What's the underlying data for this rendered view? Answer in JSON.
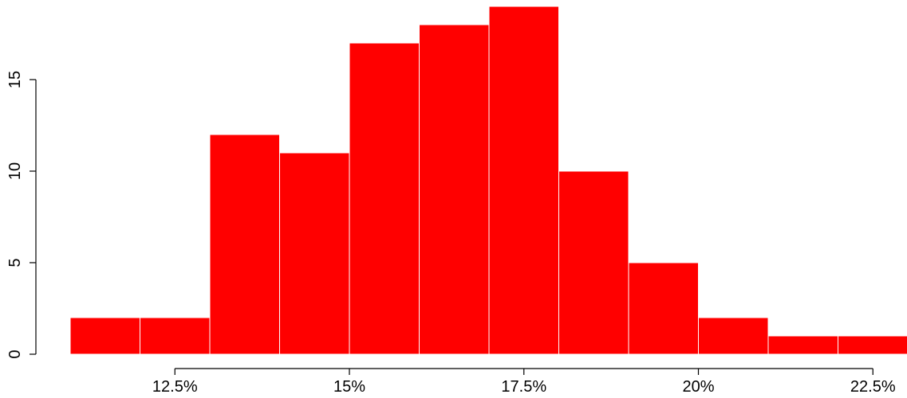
{
  "chart_data": {
    "type": "bar",
    "bins": [
      {
        "x0": 11,
        "x1": 12,
        "count": 2
      },
      {
        "x0": 12,
        "x1": 13,
        "count": 2
      },
      {
        "x0": 13,
        "x1": 14,
        "count": 12
      },
      {
        "x0": 14,
        "x1": 15,
        "count": 11
      },
      {
        "x0": 15,
        "x1": 16,
        "count": 17
      },
      {
        "x0": 16,
        "x1": 17,
        "count": 18
      },
      {
        "x0": 17,
        "x1": 18,
        "count": 19
      },
      {
        "x0": 18,
        "x1": 19,
        "count": 10
      },
      {
        "x0": 19,
        "x1": 20,
        "count": 5
      },
      {
        "x0": 20,
        "x1": 21,
        "count": 2
      },
      {
        "x0": 21,
        "x1": 22,
        "count": 1
      },
      {
        "x0": 22,
        "x1": 23,
        "count": 1
      }
    ],
    "x_ticks": [
      {
        "value": 12.5,
        "label": "12.5%"
      },
      {
        "value": 15,
        "label": "15%"
      },
      {
        "value": 17.5,
        "label": "17.5%"
      },
      {
        "value": 20,
        "label": "20%"
      },
      {
        "value": 22.5,
        "label": "22.5%"
      }
    ],
    "y_ticks": [
      {
        "value": 0,
        "label": "0"
      },
      {
        "value": 5,
        "label": "5"
      },
      {
        "value": 10,
        "label": "10"
      },
      {
        "value": 15,
        "label": "15"
      }
    ],
    "xlim": [
      11,
      23
    ],
    "ylim": [
      0,
      19
    ],
    "bar_color": "#ff0000",
    "bar_edge_color": "#ffffff",
    "title": "",
    "xlabel": "",
    "ylabel": "",
    "grid": false,
    "legend": "none"
  }
}
